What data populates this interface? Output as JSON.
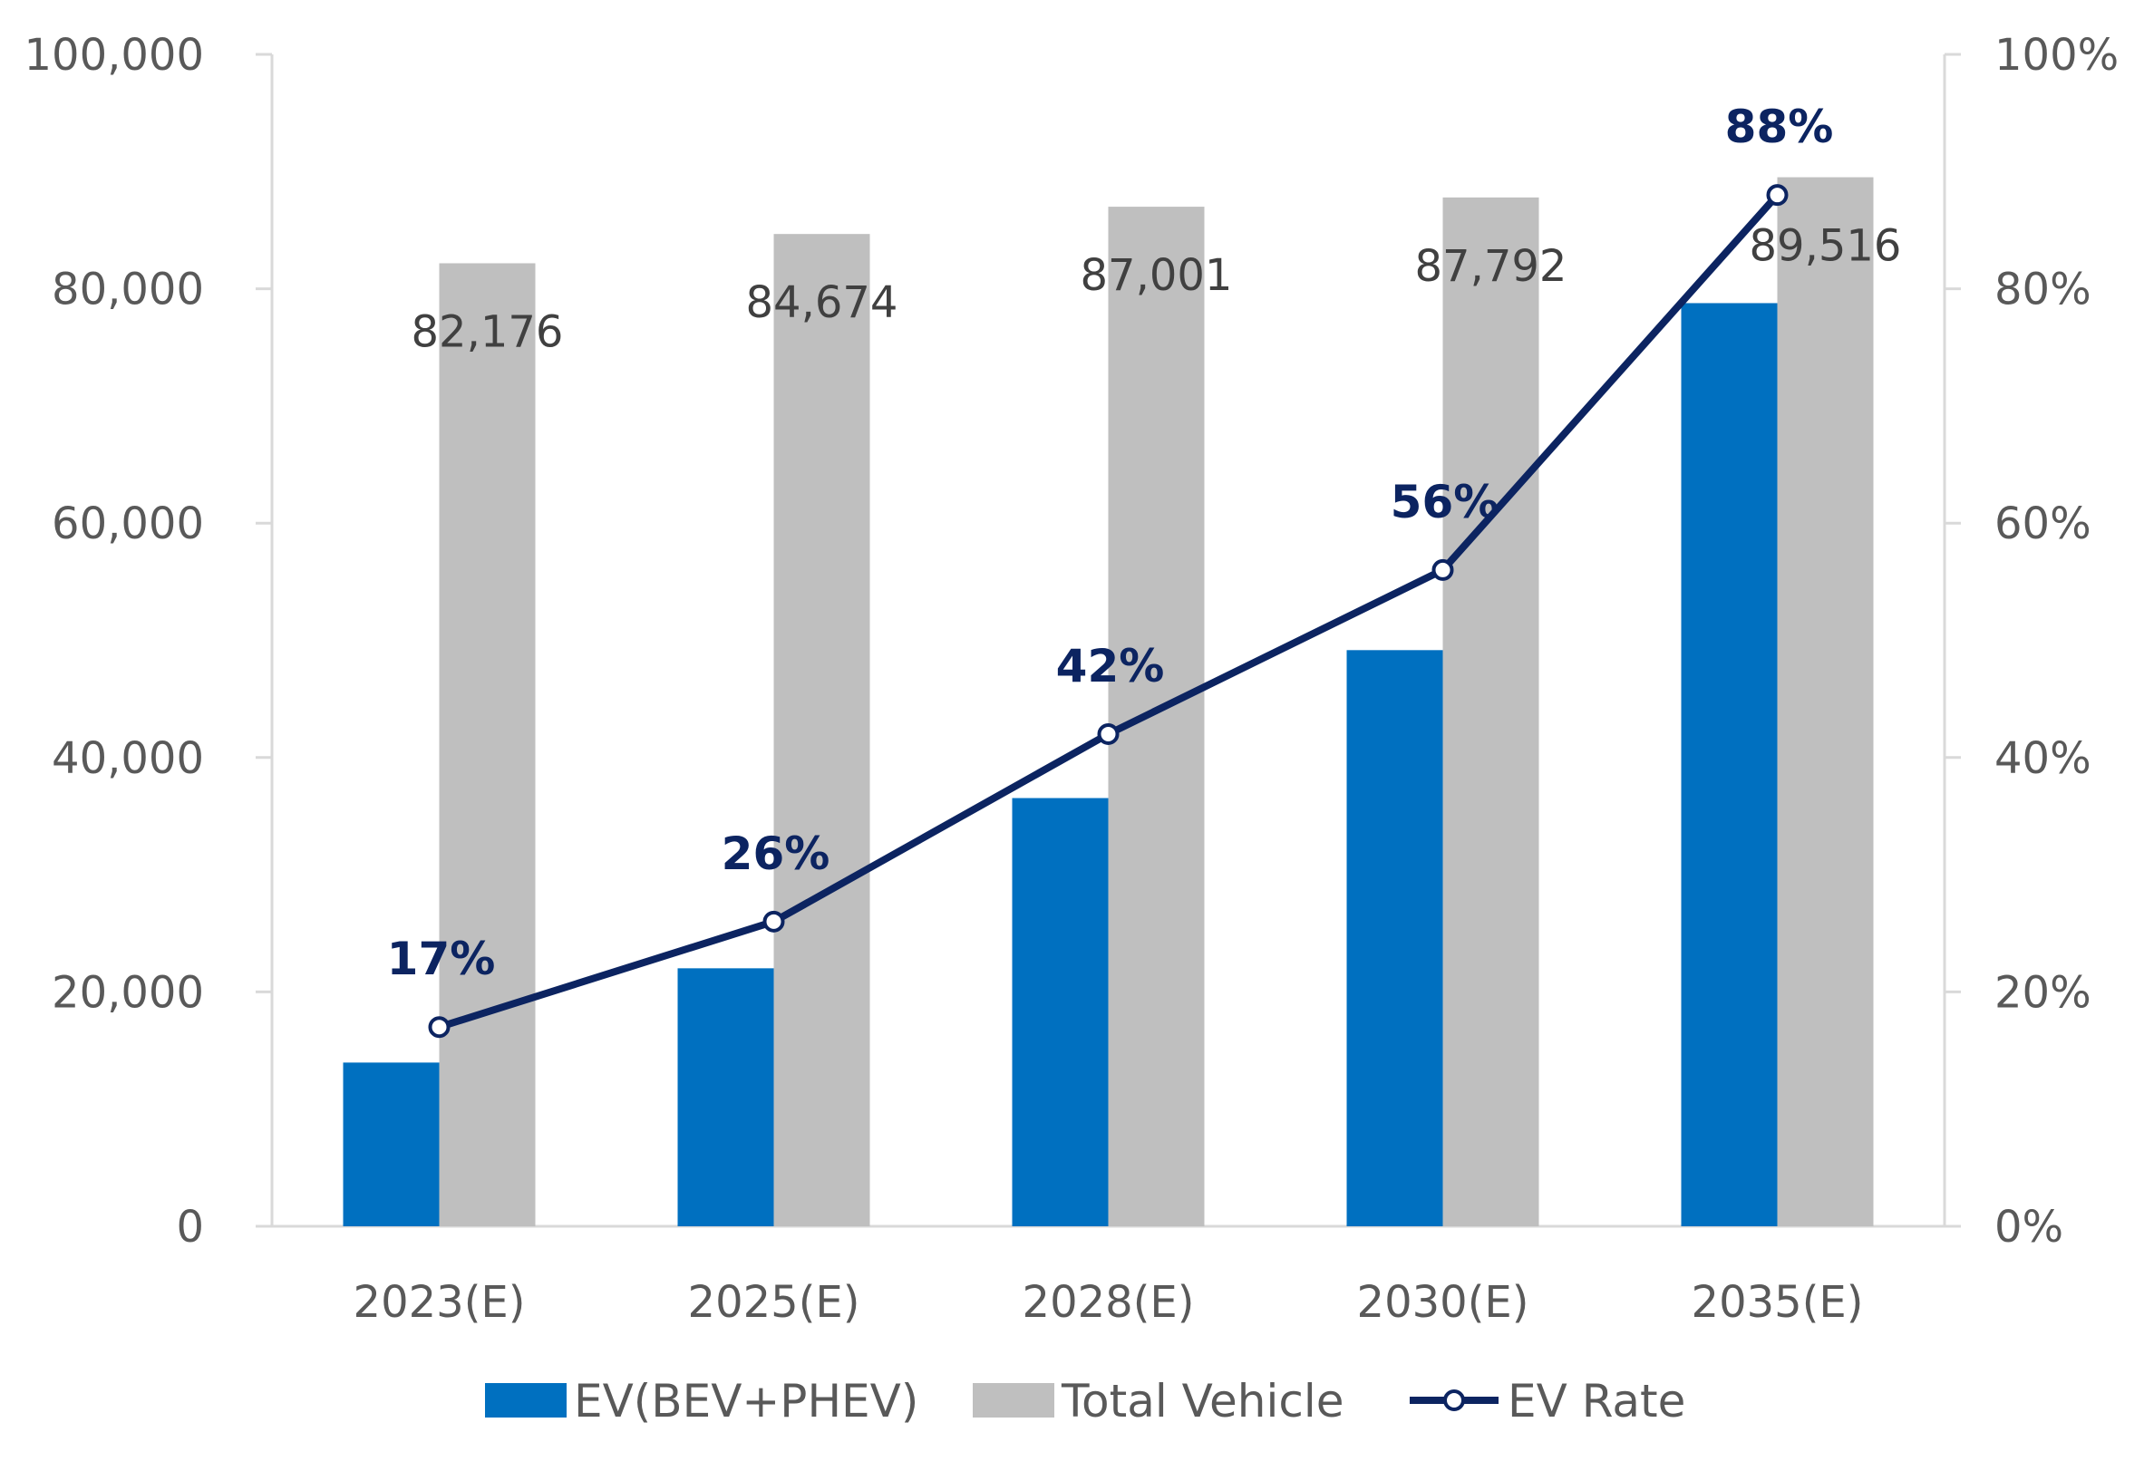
{
  "chart_data": {
    "type": "bar",
    "categories": [
      "2023(E)",
      "2025(E)",
      "2028(E)",
      "2030(E)",
      "2035(E)"
    ],
    "series": [
      {
        "name": "EV(BEV+PHEV)",
        "kind": "bar",
        "axis": "left",
        "color": "#0070c0",
        "values": [
          13970,
          22015,
          36540,
          49164,
          78774
        ]
      },
      {
        "name": "Total Vehicle",
        "kind": "bar",
        "axis": "left",
        "color": "#bfbfbf",
        "values": [
          82176,
          84674,
          87001,
          87792,
          89516
        ],
        "value_labels": [
          "82,176",
          "84,674",
          "87,001",
          "87,792",
          "89,516"
        ]
      },
      {
        "name": "EV Rate",
        "kind": "line",
        "axis": "right",
        "color": "#0c2461",
        "values": [
          17,
          26,
          42,
          56,
          88
        ],
        "value_labels": [
          "17%",
          "26%",
          "42%",
          "56%",
          "88%"
        ]
      }
    ],
    "y_left": {
      "min": 0,
      "max": 100000,
      "step": 20000,
      "tick_labels": [
        "0",
        "20,000",
        "40,000",
        "60,000",
        "80,000",
        "100,000"
      ]
    },
    "y_right": {
      "min": 0,
      "max": 100,
      "step": 20,
      "tick_labels": [
        "0%",
        "20%",
        "40%",
        "60%",
        "80%",
        "100%"
      ]
    },
    "legend": {
      "position": "bottom",
      "entries": [
        "EV(BEV+PHEV)",
        "Total Vehicle",
        "EV Rate"
      ]
    },
    "grid": false
  }
}
